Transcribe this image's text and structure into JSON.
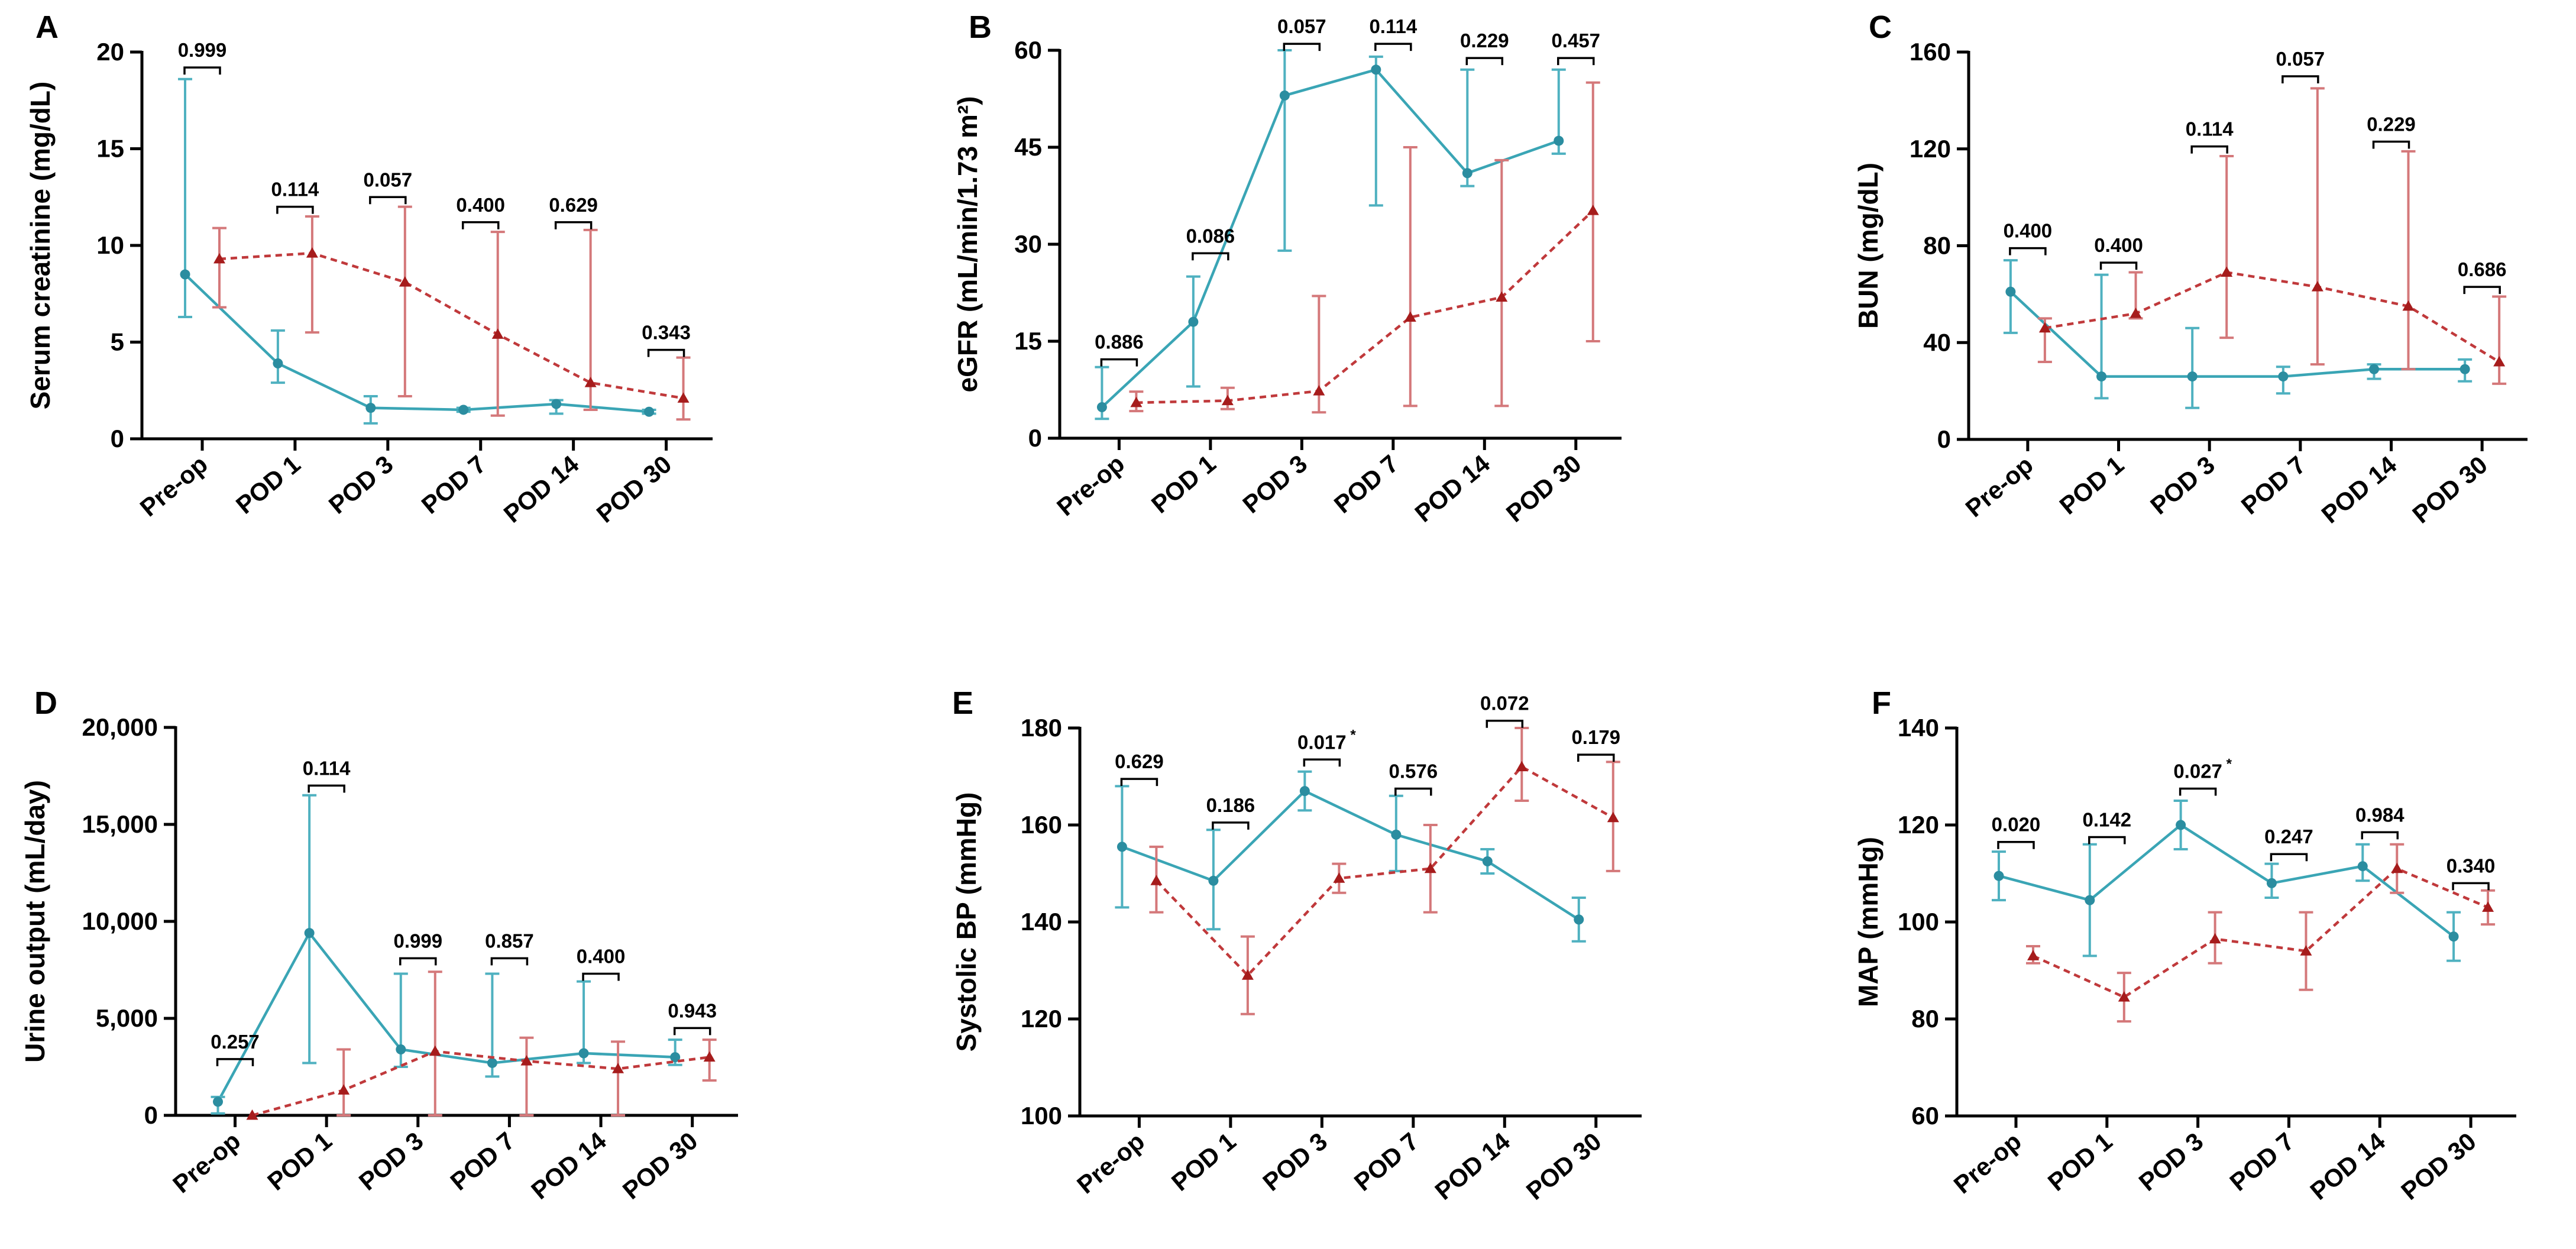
{
  "colors": {
    "teal": "#3aa5b5",
    "red": "#c0393b",
    "red_point": "#a61c1c",
    "teal_point": "#2b8da0",
    "error_red": "#d4787a",
    "error_teal": "#4fb1c0",
    "axis": "#000000"
  },
  "chart_data": [
    {
      "panel": "A",
      "type": "line",
      "ylabel": "Serum creatinine (mg/dL)",
      "categories": [
        "Pre-op",
        "POD 1",
        "POD 3",
        "POD 7",
        "POD 14",
        "POD 30"
      ],
      "ylim": [
        0,
        20
      ],
      "yticks": [
        0,
        5,
        10,
        15,
        20
      ],
      "ytick_labels": [
        "0",
        "5",
        "10",
        "15",
        "20"
      ],
      "series": [
        {
          "name": "series-1",
          "color": "teal",
          "line": "solid",
          "marker": "circle",
          "values": [
            8.5,
            3.9,
            1.6,
            1.5,
            1.8,
            1.4
          ],
          "err_low": [
            6.3,
            2.9,
            0.8,
            1.4,
            1.3,
            1.3
          ],
          "err_high": [
            18.6,
            5.6,
            2.2,
            1.6,
            2.0,
            1.5
          ]
        },
        {
          "name": "series-2",
          "color": "red",
          "line": "dashed",
          "marker": "triangle",
          "values": [
            9.3,
            9.6,
            8.1,
            5.4,
            2.9,
            2.1
          ],
          "err_low": [
            6.8,
            5.5,
            2.2,
            1.2,
            1.5,
            1.0
          ],
          "err_high": [
            10.9,
            11.5,
            12.0,
            10.7,
            10.8,
            4.2
          ]
        }
      ],
      "pvalues": [
        {
          "category": 0,
          "y": 19.2,
          "label": "0.999",
          "sup": ""
        },
        {
          "category": 1,
          "y": 12.0,
          "label": "0.114",
          "sup": ""
        },
        {
          "category": 2,
          "y": 12.5,
          "label": "0.057",
          "sup": ""
        },
        {
          "category": 3,
          "y": 11.2,
          "label": "0.400",
          "sup": ""
        },
        {
          "category": 4,
          "y": 11.2,
          "label": "0.629",
          "sup": ""
        },
        {
          "category": 5,
          "y": 4.6,
          "label": "0.343",
          "sup": ""
        }
      ]
    },
    {
      "panel": "B",
      "type": "line",
      "ylabel": "eGFR (mL/min/1.73 m²)",
      "categories": [
        "Pre-op",
        "POD 1",
        "POD 3",
        "POD 7",
        "POD 14",
        "POD 30"
      ],
      "ylim": [
        0,
        60
      ],
      "yticks": [
        0,
        15,
        30,
        45,
        60
      ],
      "ytick_labels": [
        "0",
        "15",
        "30",
        "45",
        "60"
      ],
      "series": [
        {
          "name": "series-1",
          "color": "teal",
          "line": "solid",
          "marker": "circle",
          "values": [
            4.8,
            18,
            53,
            57,
            41,
            46
          ],
          "err_low": [
            3,
            8,
            29,
            36,
            39,
            44
          ],
          "err_high": [
            11,
            25,
            60,
            59,
            57,
            57
          ]
        },
        {
          "name": "series-2",
          "color": "red",
          "line": "dashed",
          "marker": "triangle",
          "values": [
            5.5,
            5.8,
            7.3,
            18.7,
            21.8,
            35.2
          ],
          "err_low": [
            4.2,
            4.5,
            4.0,
            5.0,
            5.0,
            15.0
          ],
          "err_high": [
            7.2,
            7.8,
            22.0,
            45.0,
            43.0,
            55.0
          ]
        }
      ],
      "pvalues": [
        {
          "category": 0,
          "y": 12.2,
          "label": "0.886",
          "sup": ""
        },
        {
          "category": 1,
          "y": 28.6,
          "label": "0.086",
          "sup": ""
        },
        {
          "category": 2,
          "y": 61.0,
          "label": "0.057",
          "sup": ""
        },
        {
          "category": 3,
          "y": 61.0,
          "label": "0.114",
          "sup": ""
        },
        {
          "category": 4,
          "y": 58.8,
          "label": "0.229",
          "sup": ""
        },
        {
          "category": 5,
          "y": 58.8,
          "label": "0.457",
          "sup": ""
        }
      ]
    },
    {
      "panel": "C",
      "type": "line",
      "ylabel": "BUN (mg/dL)",
      "categories": [
        "Pre-op",
        "POD 1",
        "POD 3",
        "POD 7",
        "POD 14",
        "POD 30"
      ],
      "ylim": [
        0,
        160
      ],
      "yticks": [
        0,
        40,
        80,
        120,
        160
      ],
      "ytick_labels": [
        "0",
        "40",
        "80",
        "120",
        "160"
      ],
      "series": [
        {
          "name": "series-1",
          "color": "teal",
          "line": "solid",
          "marker": "circle",
          "values": [
            61,
            26,
            26,
            26,
            29,
            29
          ],
          "err_low": [
            44,
            17,
            13,
            19,
            25,
            24
          ],
          "err_high": [
            74,
            68,
            46,
            30,
            31,
            33
          ]
        },
        {
          "name": "series-2",
          "color": "red",
          "line": "dashed",
          "marker": "triangle",
          "values": [
            46,
            52,
            69,
            63,
            55,
            32
          ],
          "err_low": [
            32,
            50,
            42,
            31,
            29,
            23
          ],
          "err_high": [
            50,
            69,
            117,
            145,
            119,
            59
          ]
        }
      ],
      "pvalues": [
        {
          "category": 0,
          "y": 79,
          "label": "0.400",
          "sup": ""
        },
        {
          "category": 1,
          "y": 73,
          "label": "0.400",
          "sup": ""
        },
        {
          "category": 2,
          "y": 121,
          "label": "0.114",
          "sup": ""
        },
        {
          "category": 3,
          "y": 150,
          "label": "0.057",
          "sup": ""
        },
        {
          "category": 4,
          "y": 123,
          "label": "0.229",
          "sup": ""
        },
        {
          "category": 5,
          "y": 63,
          "label": "0.686",
          "sup": ""
        }
      ]
    },
    {
      "panel": "D",
      "type": "line",
      "ylabel": "Urine output (mL/day)",
      "categories": [
        "Pre-op",
        "POD 1",
        "POD 3",
        "POD 7",
        "POD 14",
        "POD 30"
      ],
      "ylim": [
        0,
        20000
      ],
      "yticks": [
        0,
        5000,
        10000,
        15000,
        20000
      ],
      "ytick_labels": [
        "0",
        "5,000",
        "10,000",
        "15,000",
        "20,000"
      ],
      "series": [
        {
          "name": "series-1",
          "color": "teal",
          "line": "solid",
          "marker": "circle",
          "values": [
            700,
            9400,
            3400,
            2700,
            3200,
            3000
          ],
          "err_low": [
            100,
            2700,
            2500,
            2000,
            2700,
            2600
          ],
          "err_high": [
            950,
            16500,
            7300,
            7300,
            6900,
            3900
          ]
        },
        {
          "name": "series-2",
          "color": "red",
          "line": "dashed",
          "marker": "triangle",
          "values": [
            0,
            1300,
            3300,
            2800,
            2400,
            3000
          ],
          "err_low": [
            0,
            0,
            0,
            0,
            0,
            1800
          ],
          "err_high": [
            0,
            3400,
            7400,
            4000,
            3800,
            3900
          ]
        }
      ],
      "pvalues": [
        {
          "category": 0,
          "y": 2900,
          "label": "0.257",
          "sup": ""
        },
        {
          "category": 1,
          "y": 17000,
          "label": "0.114",
          "sup": ""
        },
        {
          "category": 2,
          "y": 8100,
          "label": "0.999",
          "sup": ""
        },
        {
          "category": 3,
          "y": 8100,
          "label": "0.857",
          "sup": ""
        },
        {
          "category": 4,
          "y": 7300,
          "label": "0.400",
          "sup": ""
        },
        {
          "category": 5,
          "y": 4500,
          "label": "0.943",
          "sup": ""
        }
      ]
    },
    {
      "panel": "E",
      "type": "line",
      "ylabel": "Systolic BP (mmHg)",
      "categories": [
        "Pre-op",
        "POD 1",
        "POD 3",
        "POD 7",
        "POD 14",
        "POD 30"
      ],
      "ylim": [
        100,
        180
      ],
      "yticks": [
        100,
        120,
        140,
        160,
        180
      ],
      "ytick_labels": [
        "100",
        "120",
        "140",
        "160",
        "180"
      ],
      "series": [
        {
          "name": "series-1",
          "color": "teal",
          "line": "solid",
          "marker": "circle",
          "values": [
            155.5,
            148.5,
            167,
            158,
            152.5,
            140.5
          ],
          "err_low": [
            143,
            138.5,
            163,
            150.5,
            150,
            136
          ],
          "err_high": [
            168,
            159,
            171,
            166,
            155,
            145
          ]
        },
        {
          "name": "series-2",
          "color": "red",
          "line": "dashed",
          "marker": "triangle",
          "values": [
            148.5,
            129,
            149,
            151,
            172,
            161.5
          ],
          "err_low": [
            142,
            121,
            146,
            142,
            165,
            150.5
          ],
          "err_high": [
            155.5,
            137,
            152,
            160,
            180,
            173
          ]
        }
      ],
      "pvalues": [
        {
          "category": 0,
          "y": 169.5,
          "label": "0.629",
          "sup": ""
        },
        {
          "category": 1,
          "y": 160.5,
          "label": "0.186",
          "sup": ""
        },
        {
          "category": 2,
          "y": 173.5,
          "label": "0.017",
          "sup": "*"
        },
        {
          "category": 3,
          "y": 167.5,
          "label": "0.576",
          "sup": ""
        },
        {
          "category": 4,
          "y": 181.5,
          "label": "0.072",
          "sup": ""
        },
        {
          "category": 5,
          "y": 174.5,
          "label": "0.179",
          "sup": ""
        }
      ]
    },
    {
      "panel": "F",
      "type": "line",
      "ylabel": "MAP (mmHg)",
      "categories": [
        "Pre-op",
        "POD 1",
        "POD 3",
        "POD 7",
        "POD 14",
        "POD 30"
      ],
      "ylim": [
        60,
        140
      ],
      "yticks": [
        60,
        80,
        100,
        120,
        140
      ],
      "ytick_labels": [
        "60",
        "80",
        "100",
        "120",
        "140"
      ],
      "series": [
        {
          "name": "series-1",
          "color": "teal",
          "line": "solid",
          "marker": "circle",
          "values": [
            109.5,
            104.5,
            120,
            108,
            111.5,
            97
          ],
          "err_low": [
            104.5,
            93,
            115,
            105,
            108.5,
            92
          ],
          "err_high": [
            114.5,
            116,
            125,
            112,
            116,
            102
          ]
        },
        {
          "name": "series-2",
          "color": "red",
          "line": "dashed",
          "marker": "triangle",
          "values": [
            93,
            84.5,
            96.5,
            94,
            111,
            103
          ],
          "err_low": [
            91.5,
            79.5,
            91.5,
            86,
            106,
            99.5
          ],
          "err_high": [
            95,
            89.5,
            102,
            102,
            116,
            106.5
          ]
        }
      ],
      "pvalues": [
        {
          "category": 0,
          "y": 116.5,
          "label": "0.020",
          "sup": ""
        },
        {
          "category": 1,
          "y": 117.5,
          "label": "0.142",
          "sup": ""
        },
        {
          "category": 2,
          "y": 127.5,
          "label": "0.027",
          "sup": "*"
        },
        {
          "category": 3,
          "y": 114,
          "label": "0.247",
          "sup": ""
        },
        {
          "category": 4,
          "y": 118.5,
          "label": "0.984",
          "sup": ""
        },
        {
          "category": 5,
          "y": 108,
          "label": "0.340",
          "sup": ""
        }
      ]
    }
  ]
}
